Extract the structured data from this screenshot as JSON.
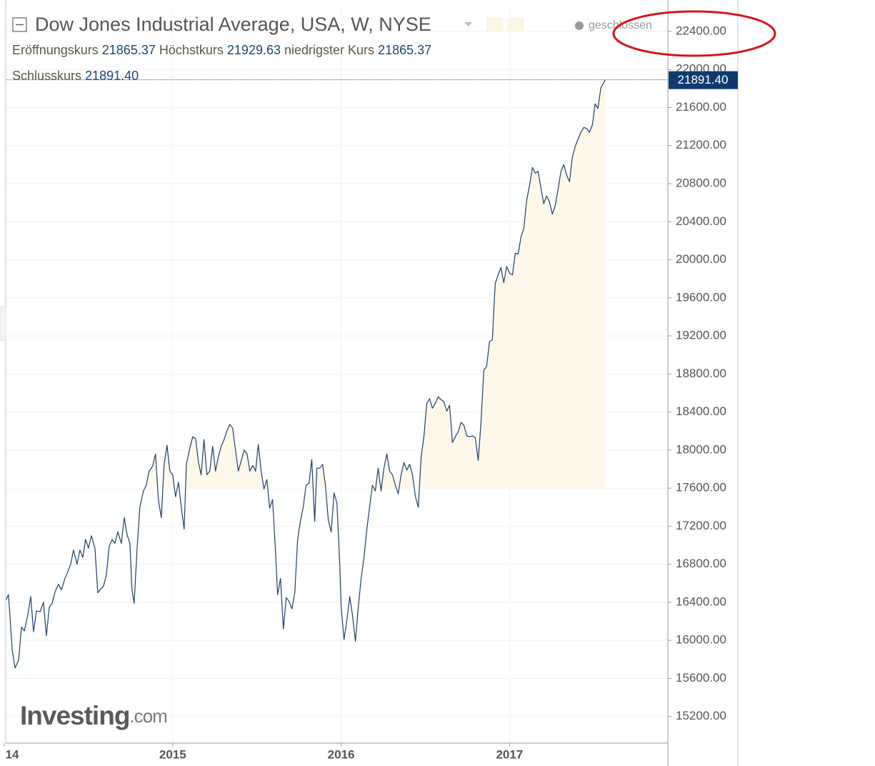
{
  "chart_data": {
    "type": "line",
    "title": "Dow Jones Industrial Average, USA, W, NYSE",
    "status": "geschlossen",
    "quotes": [
      {
        "label": "Eröffnungskurs",
        "value": "21865.37"
      },
      {
        "label": "Höchstkurs",
        "value": "21929.63"
      },
      {
        "label": "niedrigster Kurs",
        "value": "21865.37"
      },
      {
        "label": "Schlusskurs",
        "value": "21891.40"
      }
    ],
    "logo": {
      "brand": "Investing",
      "suffix": ".com"
    },
    "last_price": {
      "value": 21891.4,
      "label": "21891.40"
    },
    "color": "#1f3f66",
    "fill_color": "#fef8ea",
    "fill_base": 17600,
    "grid": true,
    "xlim": [
      2014,
      2017.94
    ],
    "xticks": [
      {
        "value": 2014,
        "label": "14"
      },
      2015,
      2016,
      2017
    ],
    "ylim": [
      14920,
      22670
    ],
    "yticks": [
      {
        "value": 15200,
        "label": "15200.00"
      },
      {
        "value": 15600,
        "label": "15600.00"
      },
      {
        "value": 16000,
        "label": "16000.00"
      },
      {
        "value": 16400,
        "label": "16400.00"
      },
      {
        "value": 16800,
        "label": "16800.00"
      },
      {
        "value": 17200,
        "label": "17200.00"
      },
      {
        "value": 17600,
        "label": "17600.00"
      },
      {
        "value": 18000,
        "label": "18000.00"
      },
      {
        "value": 18400,
        "label": "18400.00"
      },
      {
        "value": 18800,
        "label": "18800.00"
      },
      {
        "value": 19200,
        "label": "19200.00"
      },
      {
        "value": 19600,
        "label": "19600.00"
      },
      {
        "value": 20000,
        "label": "20000.00"
      },
      {
        "value": 20400,
        "label": "20400.00"
      },
      {
        "value": 20800,
        "label": "20800.00"
      },
      {
        "value": 21200,
        "label": "21200.00"
      },
      {
        "value": 21600,
        "label": "21600.00"
      },
      {
        "value": 22000,
        "label": "22000.00"
      },
      {
        "value": 22400,
        "label": "22400.00"
      }
    ],
    "x": [
      2014.008,
      2014.025,
      2014.047,
      2014.064,
      2014.085,
      2014.102,
      2014.119,
      2014.14,
      2014.157,
      2014.174,
      2014.191,
      2014.212,
      2014.233,
      2014.25,
      2014.267,
      2014.284,
      2014.301,
      2014.322,
      2014.339,
      2014.36,
      2014.377,
      2014.394,
      2014.411,
      2014.432,
      2014.449,
      2014.466,
      2014.483,
      2014.5,
      2014.517,
      2014.538,
      2014.555,
      2014.572,
      2014.589,
      2014.606,
      2014.623,
      2014.64,
      2014.657,
      2014.674,
      2014.695,
      2014.712,
      2014.729,
      2014.746,
      2014.758,
      2014.771,
      2014.788,
      2014.805,
      2014.826,
      2014.843,
      2014.86,
      2014.881,
      2014.898,
      2014.915,
      2014.932,
      2014.949,
      2014.966,
      2014.983,
      2015,
      2015.017,
      2015.034,
      2015.051,
      2015.068,
      2015.081,
      2015.102,
      2015.119,
      2015.136,
      2015.153,
      2015.169,
      2015.186,
      2015.203,
      2015.22,
      2015.237,
      2015.254,
      2015.271,
      2015.288,
      2015.305,
      2015.322,
      2015.339,
      2015.356,
      2015.373,
      2015.39,
      2015.407,
      2015.424,
      2015.441,
      2015.458,
      2015.475,
      2015.492,
      2015.508,
      2015.525,
      2015.542,
      2015.559,
      2015.576,
      2015.593,
      2015.61,
      2015.623,
      2015.64,
      2015.657,
      2015.674,
      2015.691,
      2015.708,
      2015.725,
      2015.742,
      2015.758,
      2015.775,
      2015.792,
      2015.809,
      2015.826,
      2015.843,
      2015.856,
      2015.873,
      2015.89,
      2015.907,
      2015.924,
      2015.941,
      2015.958,
      2015.975,
      2015.992,
      2016,
      2016.017,
      2016.034,
      2016.051,
      2016.068,
      2016.085,
      2016.102,
      2016.119,
      2016.136,
      2016.153,
      2016.169,
      2016.186,
      2016.203,
      2016.22,
      2016.237,
      2016.254,
      2016.271,
      2016.288,
      2016.305,
      2016.322,
      2016.339,
      2016.356,
      2016.373,
      2016.39,
      2016.407,
      2016.424,
      2016.441,
      2016.458,
      2016.475,
      2016.492,
      2016.508,
      2016.525,
      2016.542,
      2016.559,
      2016.576,
      2016.593,
      2016.61,
      2016.627,
      2016.644,
      2016.661,
      2016.678,
      2016.695,
      2016.712,
      2016.729,
      2016.746,
      2016.763,
      2016.78,
      2016.797,
      2016.814,
      2016.831,
      2016.847,
      2016.864,
      2016.881,
      2016.898,
      2016.915,
      2016.932,
      2016.949,
      2016.966,
      2016.983,
      2017,
      2017.017,
      2017.034,
      2017.051,
      2017.068,
      2017.085,
      2017.102,
      2017.119,
      2017.136,
      2017.153,
      2017.169,
      2017.186,
      2017.203,
      2017.22,
      2017.237,
      2017.254,
      2017.271,
      2017.288,
      2017.305,
      2017.322,
      2017.339,
      2017.356,
      2017.373,
      2017.39,
      2017.407,
      2017.424,
      2017.441,
      2017.458,
      2017.475,
      2017.492,
      2017.508,
      2017.525,
      2017.542,
      2017.559,
      2017.568
    ],
    "values": [
      16420,
      16480,
      15900,
      15710,
      15790,
      16140,
      16100,
      16270,
      16460,
      16090,
      16310,
      16300,
      16400,
      16050,
      16350,
      16390,
      16510,
      16590,
      16530,
      16650,
      16720,
      16800,
      16950,
      16800,
      16950,
      16870,
      17060,
      16970,
      17100,
      16970,
      16500,
      16540,
      16570,
      16690,
      16990,
      17060,
      17020,
      17140,
      17020,
      17290,
      17110,
      17020,
      16540,
      16390,
      16950,
      17400,
      17570,
      17630,
      17780,
      17830,
      17960,
      17480,
      17290,
      17850,
      18050,
      17780,
      17740,
      17510,
      17660,
      17400,
      17170,
      17850,
      18020,
      18140,
      18120,
      17870,
      17740,
      18110,
      17740,
      17780,
      18040,
      17780,
      17930,
      18040,
      18110,
      18200,
      18270,
      18230,
      18000,
      17780,
      17890,
      18000,
      17960,
      17780,
      17840,
      17780,
      18060,
      17780,
      17590,
      17690,
      17390,
      17480,
      16950,
      16480,
      16650,
      16120,
      16450,
      16410,
      16330,
      16500,
      17060,
      17250,
      17400,
      17630,
      17650,
      17900,
      17250,
      17810,
      17810,
      17850,
      17630,
      17260,
      17140,
      17550,
      17440,
      16800,
      16350,
      16010,
      16210,
      16460,
      16260,
      15990,
      16350,
      16650,
      16870,
      17170,
      17400,
      17630,
      17570,
      17810,
      17570,
      17810,
      17960,
      17780,
      17740,
      17630,
      17540,
      17740,
      17870,
      17790,
      17850,
      17740,
      17510,
      17400,
      17930,
      18150,
      18490,
      18540,
      18440,
      18490,
      18560,
      18530,
      18510,
      18410,
      18470,
      18080,
      18140,
      18190,
      18290,
      18260,
      18150,
      18140,
      18150,
      18130,
      17890,
      18300,
      18840,
      18880,
      19140,
      19160,
      19750,
      19840,
      19920,
      19760,
      19930,
      19860,
      19840,
      20070,
      20060,
      20240,
      20330,
      20630,
      20780,
      20970,
      20910,
      20930,
      20760,
      20590,
      20670,
      20610,
      20480,
      20570,
      20740,
      20930,
      21000,
      20890,
      20820,
      21080,
      21190,
      21270,
      21340,
      21390,
      21380,
      21340,
      21420,
      21640,
      21590,
      21810,
      21860,
      21891.4
    ]
  }
}
